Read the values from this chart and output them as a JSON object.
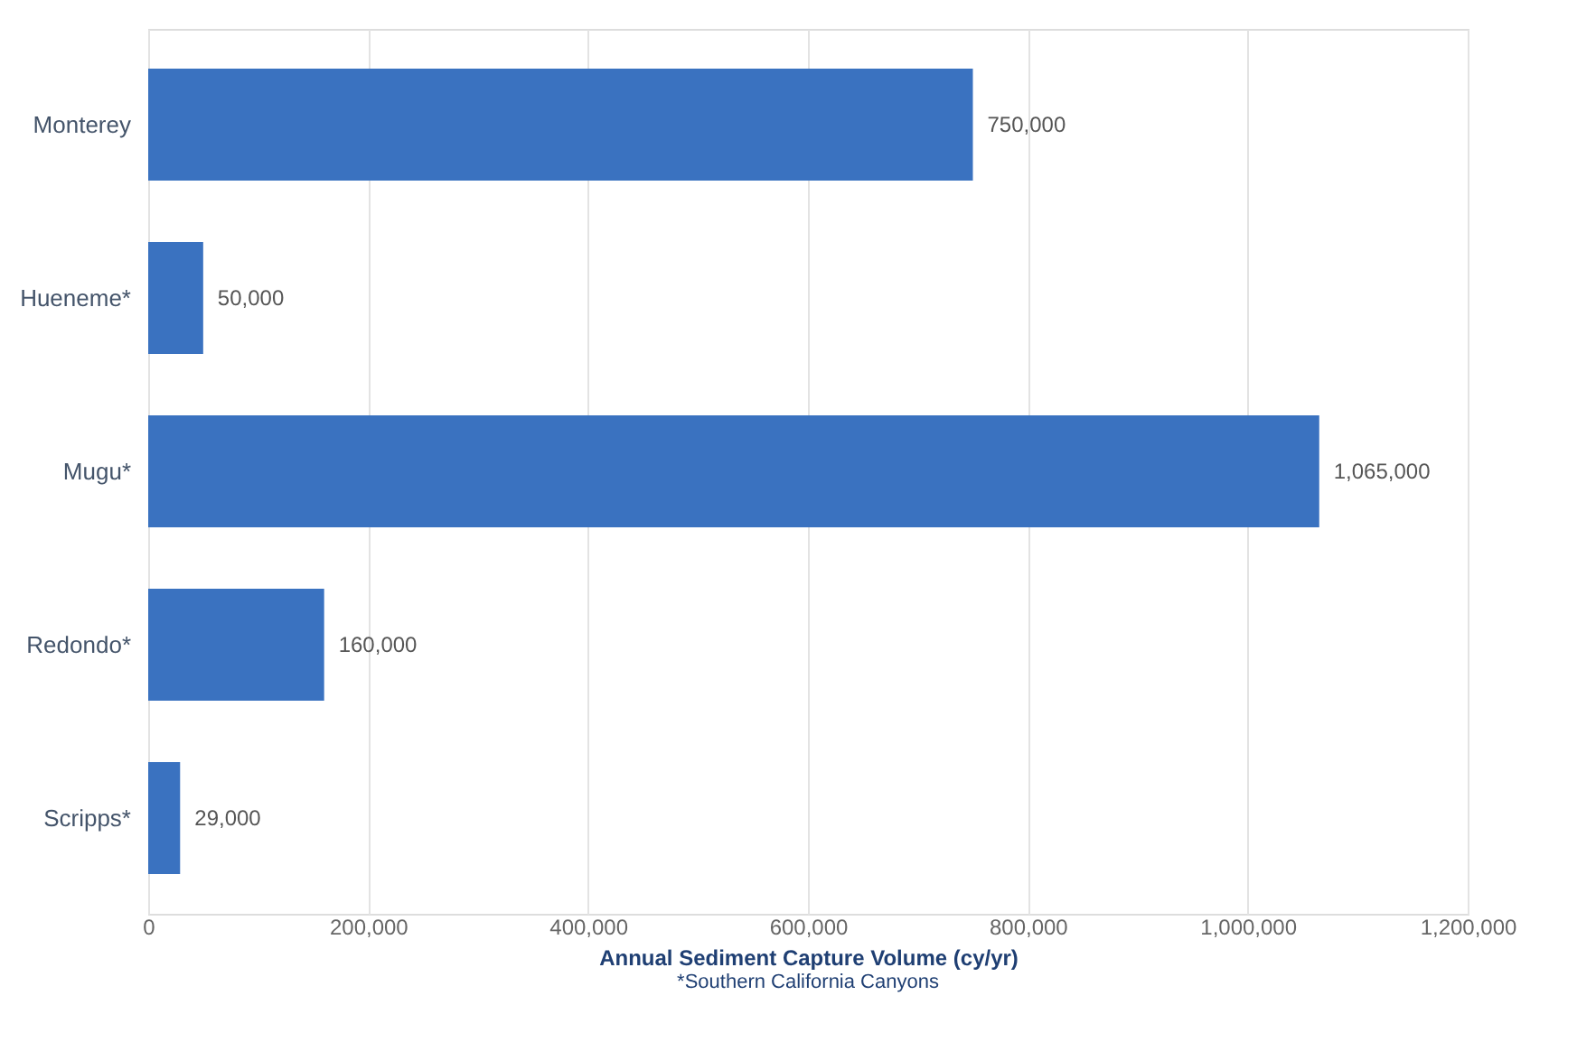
{
  "chart_data": {
    "type": "bar",
    "orientation": "horizontal",
    "categories": [
      "Monterey",
      "Hueneme*",
      "Mugu*",
      "Redondo*",
      "Scripps*"
    ],
    "values": [
      750000,
      50000,
      1065000,
      160000,
      29000
    ],
    "value_labels": [
      "750,000",
      "50,000",
      "1,065,000",
      "160,000",
      "29,000"
    ],
    "color": "#3a72c0",
    "xlim": [
      0,
      1200000
    ],
    "xticks": [
      0,
      {
        "value": 200000,
        "label": "200,000"
      },
      {
        "value": 400000,
        "label": "400,000"
      },
      {
        "value": 600000,
        "label": "600,000"
      },
      {
        "value": 800000,
        "label": "800,000"
      },
      {
        "value": 1000000,
        "label": "1,000,000"
      },
      {
        "value": 1200000,
        "label": "1,200,000"
      }
    ],
    "xlabel": "Annual Sediment Capture Volume (cy/yr)",
    "annotations": [
      "*Southern California Canyons"
    ],
    "grid": "x"
  }
}
